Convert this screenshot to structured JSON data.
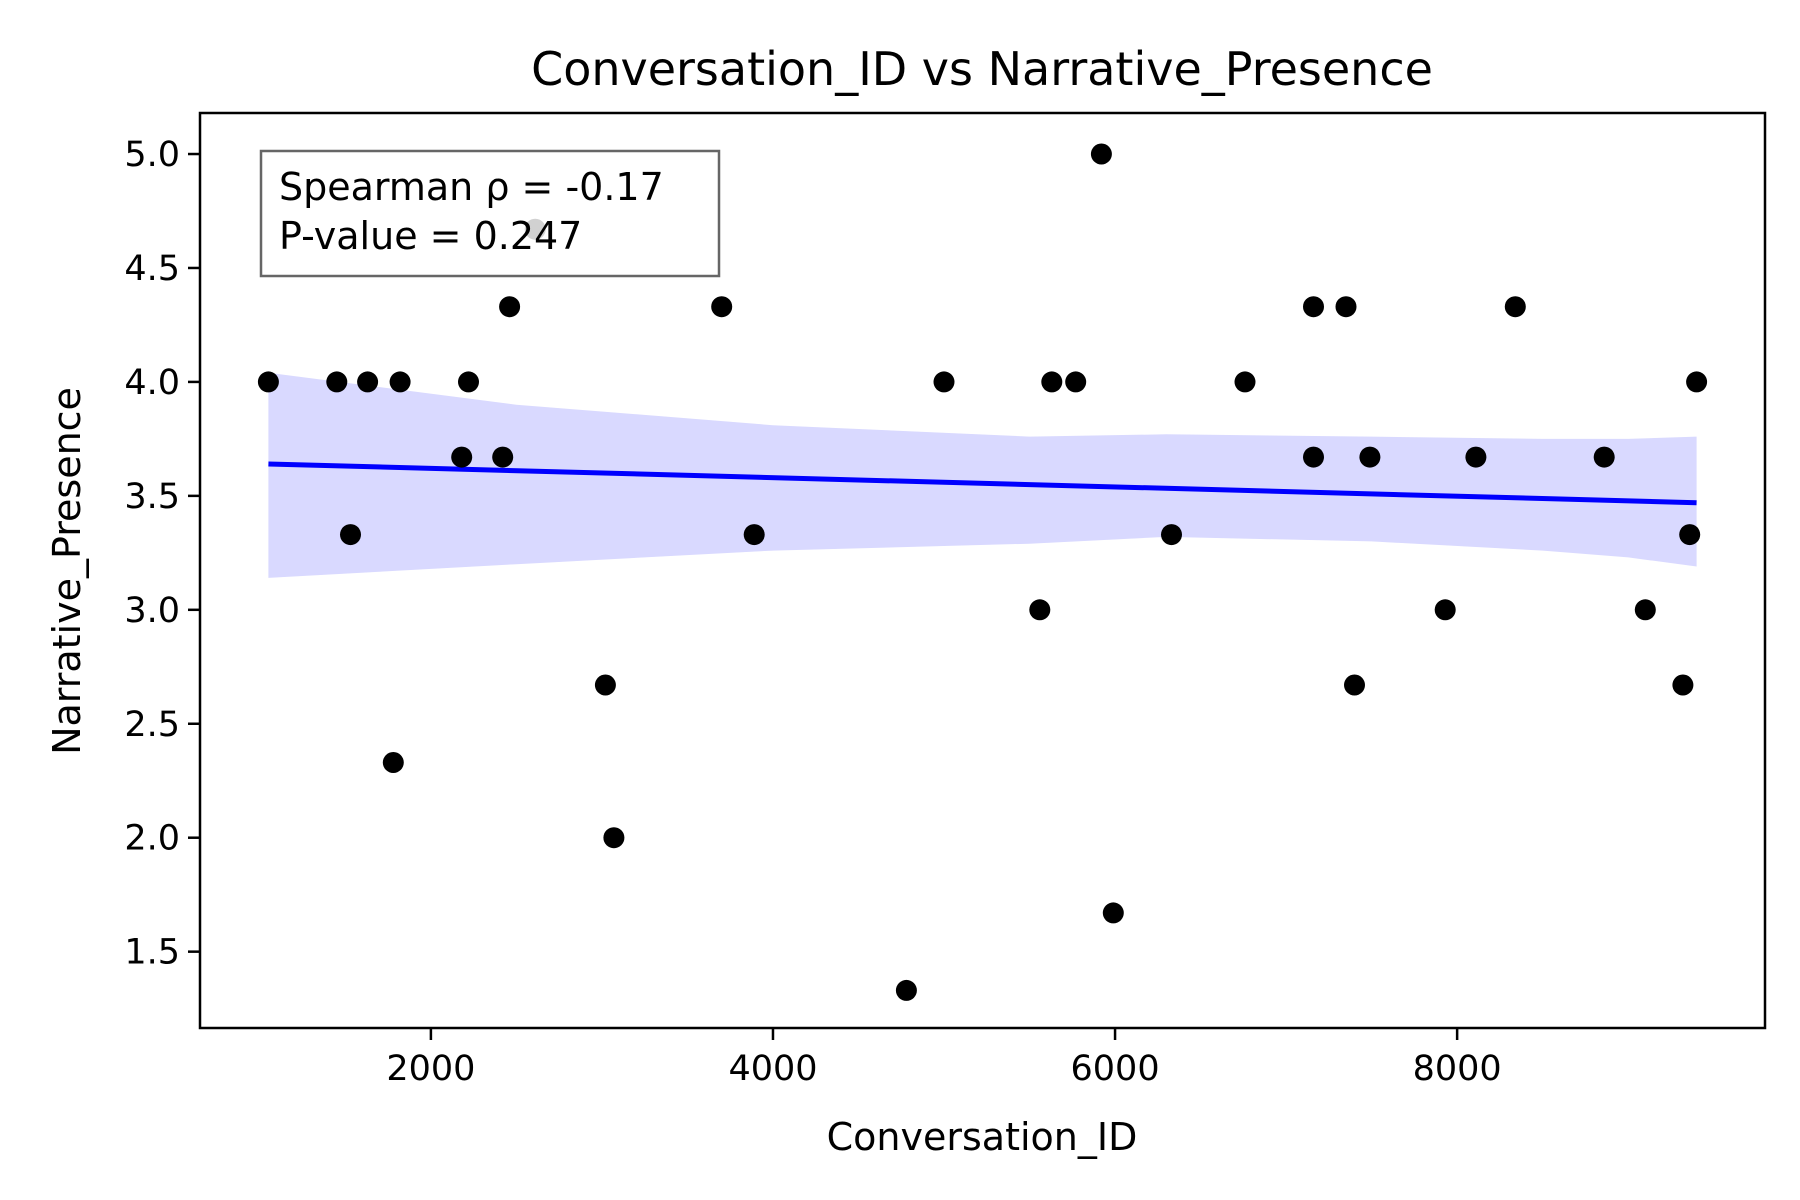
{
  "chart_data": {
    "type": "scatter",
    "title": "Conversation_ID vs Narrative_Presence",
    "xlabel": "Conversation_ID",
    "ylabel": "Narrative_Presence",
    "xlim": [
      650,
      9800
    ],
    "ylim": [
      1.165,
      5.18
    ],
    "xticks": [
      2000,
      4000,
      6000,
      8000
    ],
    "xtick_labels": [
      "2000",
      "4000",
      "6000",
      "8000"
    ],
    "yticks": [
      1.5,
      2.0,
      2.5,
      3.0,
      3.5,
      4.0,
      4.5,
      5.0
    ],
    "ytick_labels": [
      "1.5",
      "2.0",
      "2.5",
      "3.0",
      "3.5",
      "4.0",
      "4.5",
      "5.0"
    ],
    "grid": false,
    "annotation": {
      "lines": [
        "Spearman ρ = -0.17",
        "P-value = 0.247"
      ],
      "placement": "top-left"
    },
    "colors": {
      "points": "#000000",
      "highlight_point": "#999999",
      "regression_line": "#0000ff",
      "confidence_band": "#d9d9ff",
      "annotation_border": "#666666"
    },
    "points": [
      {
        "x": 1050,
        "y": 4.0
      },
      {
        "x": 1450,
        "y": 4.0
      },
      {
        "x": 1530,
        "y": 3.33
      },
      {
        "x": 1630,
        "y": 4.0
      },
      {
        "x": 1780,
        "y": 2.33
      },
      {
        "x": 1820,
        "y": 4.0
      },
      {
        "x": 2180,
        "y": 3.67
      },
      {
        "x": 2220,
        "y": 4.0
      },
      {
        "x": 2420,
        "y": 3.67
      },
      {
        "x": 2460,
        "y": 4.33
      },
      {
        "x": 2610,
        "y": 4.67,
        "highlight": true
      },
      {
        "x": 3020,
        "y": 2.67
      },
      {
        "x": 3070,
        "y": 2.0
      },
      {
        "x": 3700,
        "y": 4.33
      },
      {
        "x": 3890,
        "y": 3.33
      },
      {
        "x": 4780,
        "y": 1.33
      },
      {
        "x": 5000,
        "y": 4.0
      },
      {
        "x": 5560,
        "y": 3.0
      },
      {
        "x": 5630,
        "y": 4.0
      },
      {
        "x": 5770,
        "y": 4.0
      },
      {
        "x": 5920,
        "y": 5.0
      },
      {
        "x": 5990,
        "y": 1.67
      },
      {
        "x": 6330,
        "y": 3.33
      },
      {
        "x": 6760,
        "y": 4.0
      },
      {
        "x": 7160,
        "y": 4.33
      },
      {
        "x": 7160,
        "y": 3.67
      },
      {
        "x": 7350,
        "y": 4.33
      },
      {
        "x": 7400,
        "y": 2.67
      },
      {
        "x": 7490,
        "y": 3.67
      },
      {
        "x": 7930,
        "y": 3.0
      },
      {
        "x": 8110,
        "y": 3.67
      },
      {
        "x": 8340,
        "y": 4.33
      },
      {
        "x": 8860,
        "y": 3.67
      },
      {
        "x": 9100,
        "y": 3.0
      },
      {
        "x": 9320,
        "y": 2.67
      },
      {
        "x": 9360,
        "y": 3.33
      },
      {
        "x": 9400,
        "y": 4.0
      }
    ],
    "regression": {
      "x": [
        1050,
        9400
      ],
      "y": [
        3.64,
        3.47
      ]
    },
    "confidence_band": {
      "x": [
        1050,
        2500,
        4000,
        5500,
        6300,
        7500,
        8500,
        9000,
        9400
      ],
      "upper": [
        4.04,
        3.9,
        3.81,
        3.76,
        3.77,
        3.76,
        3.75,
        3.75,
        3.76
      ],
      "lower": [
        3.14,
        3.2,
        3.26,
        3.29,
        3.32,
        3.3,
        3.26,
        3.23,
        3.19
      ]
    }
  }
}
